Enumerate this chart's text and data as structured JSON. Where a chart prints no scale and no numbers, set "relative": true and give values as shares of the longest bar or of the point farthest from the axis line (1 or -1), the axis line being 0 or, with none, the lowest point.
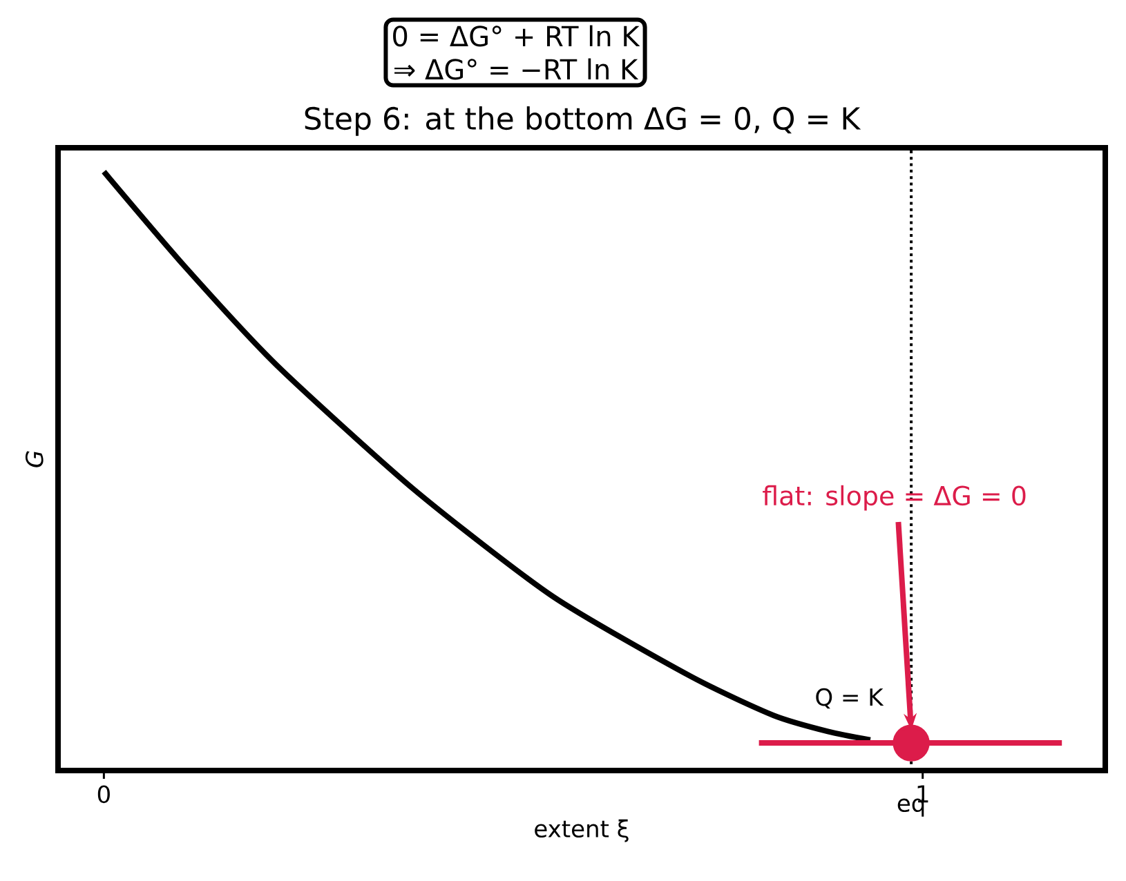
{
  "chart_data": {
    "type": "line",
    "relative": true,
    "title": "Step 6: at the bottom  ΔG = 0,  Q = K",
    "xlabel": "extent  ξ",
    "ylabel": "G",
    "xlim": [
      -0.056,
      1.223
    ],
    "xticks": [
      0,
      1
    ],
    "series": [
      {
        "color": "#000000",
        "x": [
          0,
          0.098,
          0.211,
          0.379,
          0.548,
          0.717,
          0.818,
          0.885,
          0.936
        ],
        "values": [
          1.0,
          0.843,
          0.677,
          0.469,
          0.291,
          0.157,
          0.092,
          0.065,
          0.051
        ]
      },
      {
        "type": "line",
        "color": "#dc1c4a",
        "x": [
          0.8,
          1.17
        ],
        "values": [
          0.046,
          0.046
        ]
      },
      {
        "type": "scatter",
        "color": "#dc1c4a",
        "x": [
          0.986
        ],
        "values": [
          0.046
        ]
      }
    ],
    "ref_lines": [
      {
        "axis": "x",
        "value": 0.986,
        "label": "Q = K",
        "line_style": "dotted",
        "color": "#000000"
      }
    ],
    "annotations": [
      "0 = ΔG° + RT ln K",
      "⇒ ΔG° = −RT ln K",
      "flat: slope = ΔG = 0",
      "eq"
    ]
  }
}
